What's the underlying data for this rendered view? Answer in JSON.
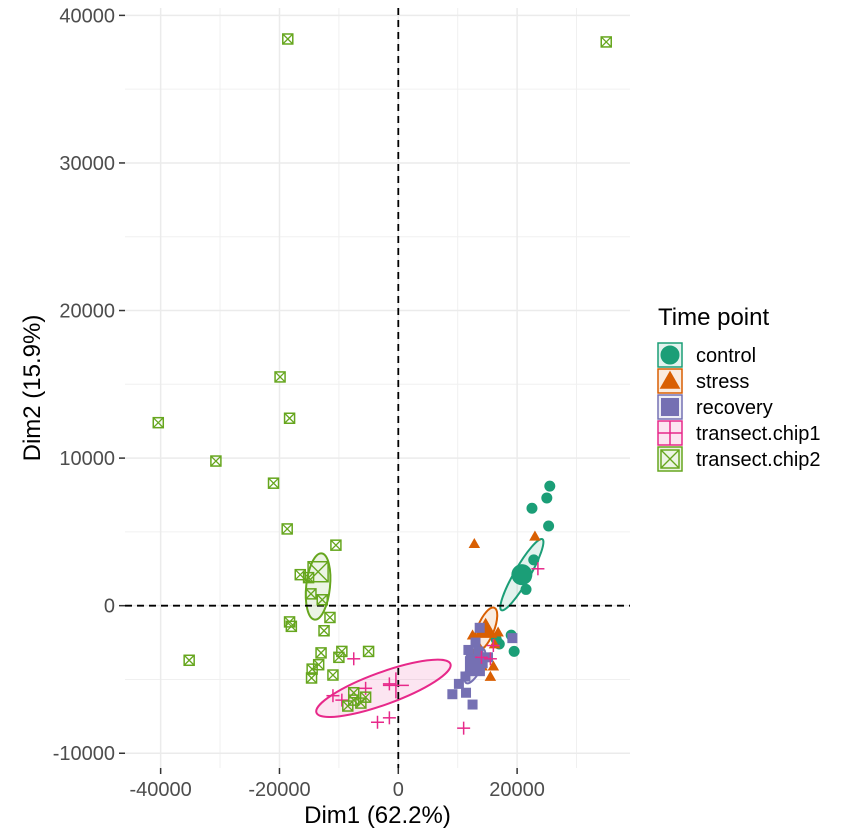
{
  "chart_data": {
    "type": "scatter",
    "xlabel": "Dim1 (62.2%)",
    "ylabel": "Dim2 (15.9%)",
    "xlim": [
      -46000,
      39000
    ],
    "ylim": [
      -11000,
      40500
    ],
    "x_ticks": [
      -40000,
      -20000,
      0,
      20000
    ],
    "y_ticks": [
      -10000,
      0,
      10000,
      20000,
      30000,
      40000
    ],
    "x_tick_labels": [
      "-40000",
      "-20000",
      "0",
      "20000"
    ],
    "y_tick_labels": [
      "-10000",
      "0",
      "10000",
      "20000",
      "30000",
      "40000"
    ],
    "grid": true,
    "reference_lines": {
      "x": 0,
      "y": 0,
      "style": "dashed"
    },
    "legend": {
      "title": "Time point",
      "position": "right"
    },
    "series": [
      {
        "name": "control",
        "marker": "circle",
        "color": "#1B9E77",
        "points": [
          [
            25500,
            8100
          ],
          [
            25000,
            7300
          ],
          [
            22500,
            6600
          ],
          [
            25300,
            5400
          ],
          [
            22800,
            3100
          ],
          [
            21500,
            1900
          ],
          [
            21500,
            1100
          ],
          [
            19000,
            -2000
          ],
          [
            19500,
            -3100
          ],
          [
            17000,
            -2600
          ],
          [
            16500,
            -2300
          ]
        ],
        "centroid": [
          20800,
          2100
        ],
        "ellipse": {
          "cx": 20800,
          "cy": 2100,
          "rx": 6900,
          "ry": 1300,
          "angle_deg": -60
        }
      },
      {
        "name": "stress",
        "marker": "triangle",
        "color": "#D95F02",
        "points": [
          [
            12800,
            4200
          ],
          [
            23000,
            4700
          ],
          [
            16800,
            -1800
          ],
          [
            16200,
            -2600
          ],
          [
            13200,
            -2500
          ],
          [
            12600,
            -3300
          ],
          [
            14100,
            -4100
          ],
          [
            15500,
            -4800
          ],
          [
            16000,
            -4100
          ],
          [
            14800,
            -1300
          ],
          [
            12500,
            -2000
          ]
        ],
        "centroid": [
          14700,
          -1600
        ],
        "ellipse": {
          "cx": 14700,
          "cy": -1600,
          "rx": 3900,
          "ry": 1400,
          "angle_deg": -68
        }
      },
      {
        "name": "recovery",
        "marker": "square",
        "color": "#7570B3",
        "points": [
          [
            19200,
            -2200
          ],
          [
            13700,
            -1500
          ],
          [
            13000,
            -2500
          ],
          [
            12200,
            -3600
          ],
          [
            11300,
            -4800
          ],
          [
            10200,
            -5300
          ],
          [
            9100,
            -6000
          ],
          [
            11400,
            -5900
          ],
          [
            12500,
            -6700
          ],
          [
            14200,
            -3900
          ],
          [
            15100,
            -3500
          ],
          [
            13500,
            -3100
          ],
          [
            11800,
            -3000
          ]
        ],
        "centroid": [
          12900,
          -4100
        ],
        "ellipse": {
          "cx": 12900,
          "cy": -4100,
          "rx": 3200,
          "ry": 1100,
          "angle_deg": -63
        }
      },
      {
        "name": "transect.chip1",
        "marker": "plus",
        "color": "#E7298A",
        "points": [
          [
            23500,
            2500
          ],
          [
            16000,
            -2700
          ],
          [
            15500,
            -3600
          ],
          [
            -1500,
            -5300
          ],
          [
            -5500,
            -5600
          ],
          [
            -7500,
            -3600
          ],
          [
            -11000,
            -6100
          ],
          [
            -9500,
            -6400
          ],
          [
            -3500,
            -7900
          ],
          [
            -1500,
            -7600
          ],
          [
            11000,
            -8300
          ],
          [
            14000,
            -3500
          ]
        ],
        "centroid": [
          -400,
          -5400
        ],
        "ellipse": {
          "cx": -2500,
          "cy": -5600,
          "rx": 12000,
          "ry": 2700,
          "angle_deg": -20
        }
      },
      {
        "name": "transect.chip2",
        "marker": "boxcross",
        "color": "#66A61E",
        "points": [
          [
            -18600,
            38400
          ],
          [
            35000,
            38200
          ],
          [
            -19900,
            15500
          ],
          [
            -18300,
            12700
          ],
          [
            -40400,
            12400
          ],
          [
            -30700,
            9800
          ],
          [
            -21000,
            8300
          ],
          [
            -18700,
            5200
          ],
          [
            -10500,
            4100
          ],
          [
            -16500,
            2100
          ],
          [
            -15100,
            1900
          ],
          [
            -12800,
            400
          ],
          [
            -14700,
            800
          ],
          [
            -18300,
            -1100
          ],
          [
            -18000,
            -1400
          ],
          [
            -11500,
            -800
          ],
          [
            -12500,
            -1700
          ],
          [
            -14500,
            -4300
          ],
          [
            -13400,
            -4000
          ],
          [
            -14600,
            -4900
          ],
          [
            -13000,
            -3200
          ],
          [
            -9500,
            -3100
          ],
          [
            -10000,
            -3500
          ],
          [
            -5000,
            -3100
          ],
          [
            -11000,
            -4700
          ],
          [
            -35200,
            -3700
          ],
          [
            -7500,
            -5900
          ],
          [
            -5500,
            -6200
          ],
          [
            -7500,
            -6400
          ],
          [
            -8500,
            -6800
          ],
          [
            -6300,
            -6600
          ]
        ],
        "centroid": [
          -13500,
          2300
        ],
        "ellipse": {
          "cx": -13500,
          "cy": 1300,
          "rx": 5600,
          "ry": 2000,
          "angle_deg": -84
        }
      }
    ]
  }
}
